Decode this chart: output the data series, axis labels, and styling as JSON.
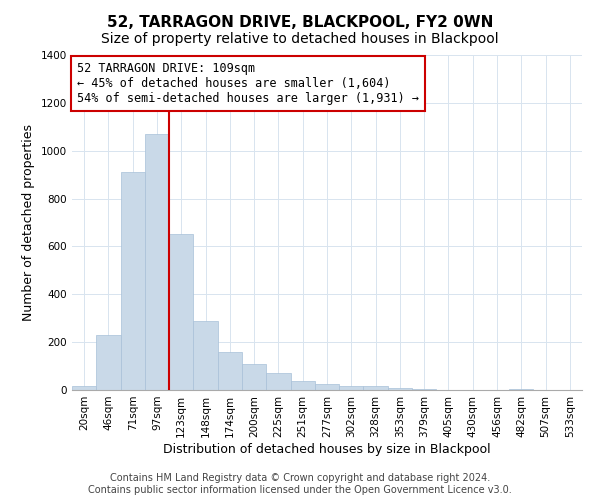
{
  "title": "52, TARRAGON DRIVE, BLACKPOOL, FY2 0WN",
  "subtitle": "Size of property relative to detached houses in Blackpool",
  "xlabel": "Distribution of detached houses by size in Blackpool",
  "ylabel": "Number of detached properties",
  "bin_labels": [
    "20sqm",
    "46sqm",
    "71sqm",
    "97sqm",
    "123sqm",
    "148sqm",
    "174sqm",
    "200sqm",
    "225sqm",
    "251sqm",
    "277sqm",
    "302sqm",
    "328sqm",
    "353sqm",
    "379sqm",
    "405sqm",
    "430sqm",
    "456sqm",
    "482sqm",
    "507sqm",
    "533sqm"
  ],
  "bar_heights": [
    15,
    230,
    910,
    1070,
    650,
    290,
    158,
    107,
    72,
    38,
    25,
    15,
    18,
    10,
    3,
    0,
    0,
    0,
    5,
    0,
    2
  ],
  "bar_color": "#c9d9e8",
  "bar_edge_color": "#a8c0d8",
  "vline_x": 3.5,
  "vline_color": "#cc0000",
  "annotation_line1": "52 TARRAGON DRIVE: 109sqm",
  "annotation_line2": "← 45% of detached houses are smaller (1,604)",
  "annotation_line3": "54% of semi-detached houses are larger (1,931) →",
  "annotation_box_facecolor": "#ffffff",
  "annotation_box_edgecolor": "#cc0000",
  "ylim": [
    0,
    1400
  ],
  "yticks": [
    0,
    200,
    400,
    600,
    800,
    1000,
    1200,
    1400
  ],
  "grid_color": "#d8e4ef",
  "footer_line1": "Contains HM Land Registry data © Crown copyright and database right 2024.",
  "footer_line2": "Contains public sector information licensed under the Open Government Licence v3.0.",
  "title_fontsize": 11,
  "subtitle_fontsize": 10,
  "xlabel_fontsize": 9,
  "ylabel_fontsize": 9,
  "tick_fontsize": 7.5,
  "annotation_fontsize": 8.5,
  "footer_fontsize": 7
}
